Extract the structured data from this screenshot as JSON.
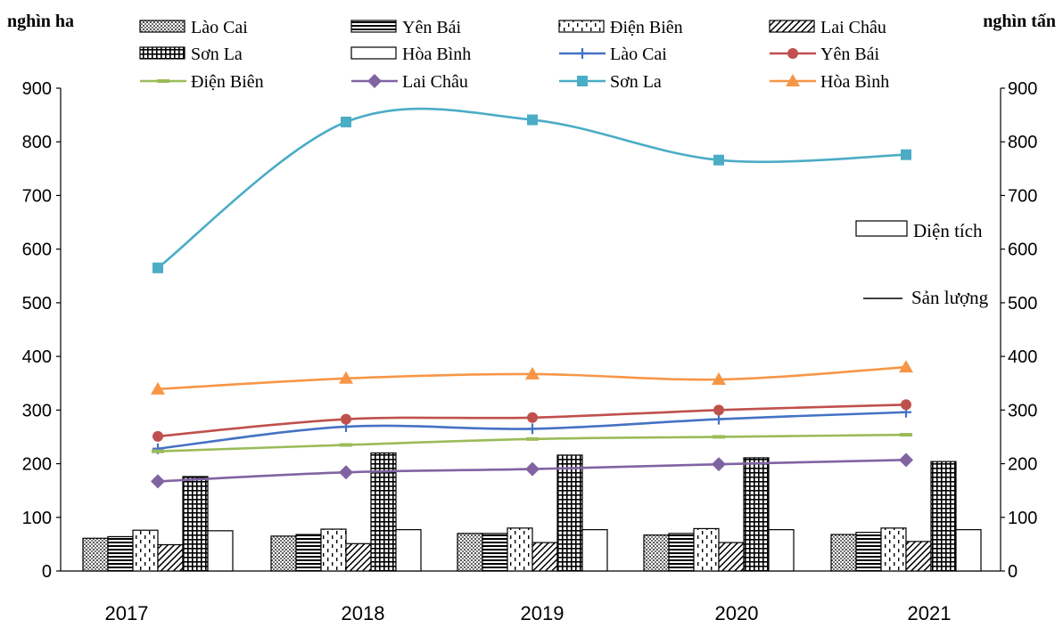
{
  "chart_data": {
    "type": "bar+line",
    "left_axis_unit": "nghìn ha",
    "right_axis_unit": "nghìn tấn",
    "categories": [
      "2017",
      "2018",
      "2019",
      "2020",
      "2021"
    ],
    "ylim": [
      0,
      900
    ],
    "yticks": [
      "0",
      "100",
      "200",
      "300",
      "400",
      "500",
      "600",
      "700",
      "800",
      "900"
    ],
    "bar_series": [
      {
        "name": "Lào Cai",
        "pattern": "dots",
        "values": [
          61,
          65,
          70,
          67,
          68
        ]
      },
      {
        "name": "Yên Bái",
        "pattern": "hlines",
        "values": [
          64,
          68,
          70,
          70,
          72
        ]
      },
      {
        "name": "Điện Biên",
        "pattern": "dashes",
        "values": [
          76,
          78,
          80,
          79,
          80
        ]
      },
      {
        "name": "Lai Châu",
        "pattern": "diag",
        "values": [
          49,
          51,
          53,
          53,
          55
        ]
      },
      {
        "name": "Sơn La",
        "pattern": "grid",
        "values": [
          176,
          220,
          216,
          211,
          204
        ]
      },
      {
        "name": "Hòa Bình",
        "pattern": "plain",
        "values": [
          75,
          77,
          77,
          77,
          77
        ]
      }
    ],
    "line_series": [
      {
        "name": "Lào Cai",
        "color": "#4472C4",
        "marker": "plus",
        "values": [
          228,
          269,
          265,
          283,
          296
        ]
      },
      {
        "name": "Yên Bái",
        "color": "#C0504D",
        "marker": "circle",
        "values": [
          251,
          283,
          286,
          300,
          310
        ]
      },
      {
        "name": "Điện Biên",
        "color": "#9BBB59",
        "marker": "dash",
        "values": [
          223,
          235,
          246,
          250,
          254
        ]
      },
      {
        "name": "Lai Châu",
        "color": "#8064A2",
        "marker": "diamond",
        "values": [
          167,
          184,
          190,
          199,
          207
        ]
      },
      {
        "name": "Sơn La",
        "color": "#4BACC6",
        "marker": "square",
        "values": [
          565,
          837,
          841,
          766,
          776
        ]
      },
      {
        "name": "Hòa Bình",
        "color": "#F79646",
        "marker": "triangle",
        "values": [
          339,
          359,
          367,
          357,
          380
        ]
      }
    ],
    "side_legend": {
      "area_label": "Diện tích",
      "output_label": "Sản lượng"
    }
  }
}
